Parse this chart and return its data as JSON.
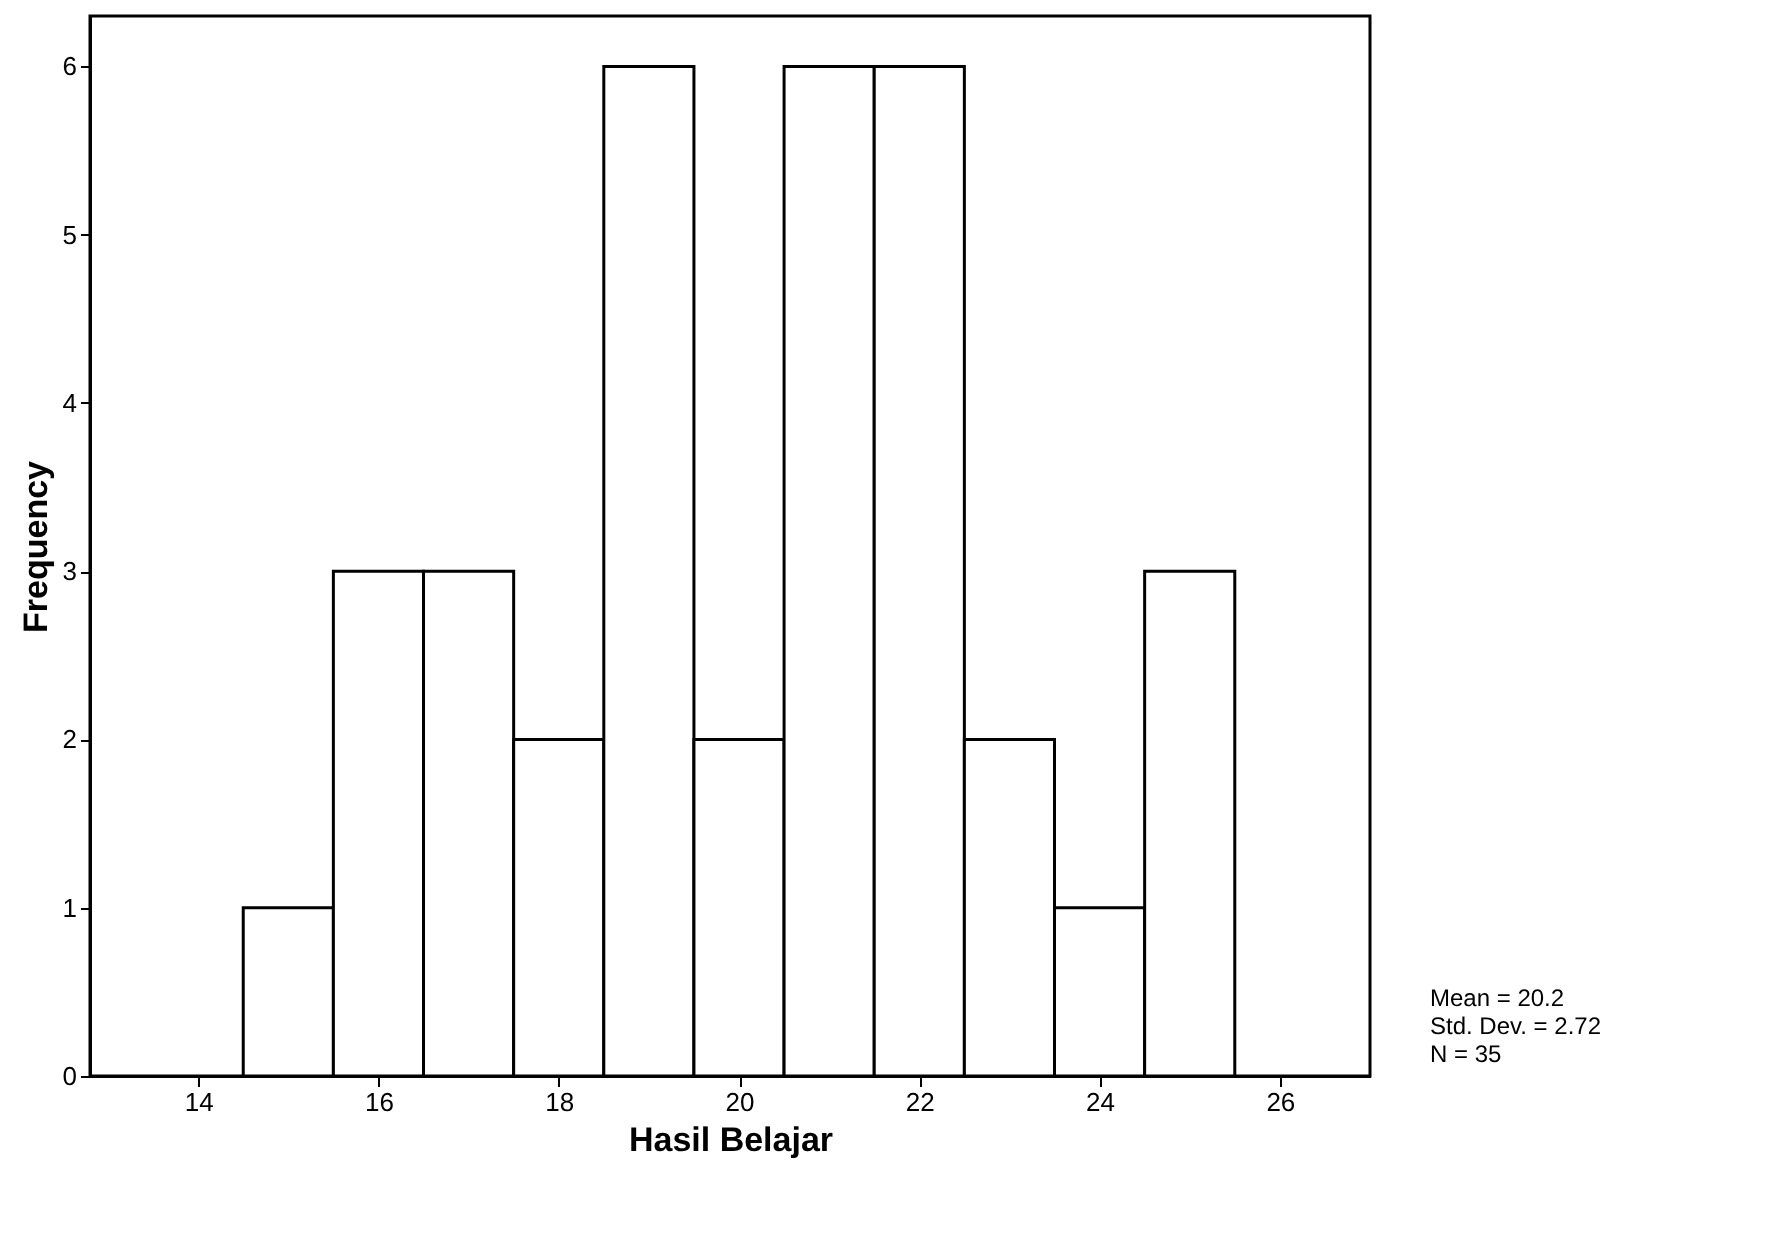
{
  "chart_data": {
    "type": "histogram",
    "xlabel": "Hasil Belajar",
    "ylabel": "Frequency",
    "bins": [
      14.5,
      15.5,
      16.5,
      17.5,
      18.5,
      19.5,
      20.5,
      21.5,
      22.5,
      23.5,
      24.5,
      25.5
    ],
    "values": [
      1,
      3,
      3,
      2,
      6,
      2,
      6,
      6,
      2,
      1,
      3
    ],
    "color": "#ffffff",
    "xlim": [
      12.8,
      27
    ],
    "xticks": [
      14,
      16,
      18,
      20,
      22,
      24,
      26
    ],
    "ylim": [
      0,
      6.3
    ],
    "yticks": [
      0,
      1,
      2,
      3,
      4,
      5,
      6
    ],
    "grid": false,
    "annotations": [
      "Mean = 20.2",
      "Std. Dev. = 2.72",
      "N = 35"
    ]
  }
}
